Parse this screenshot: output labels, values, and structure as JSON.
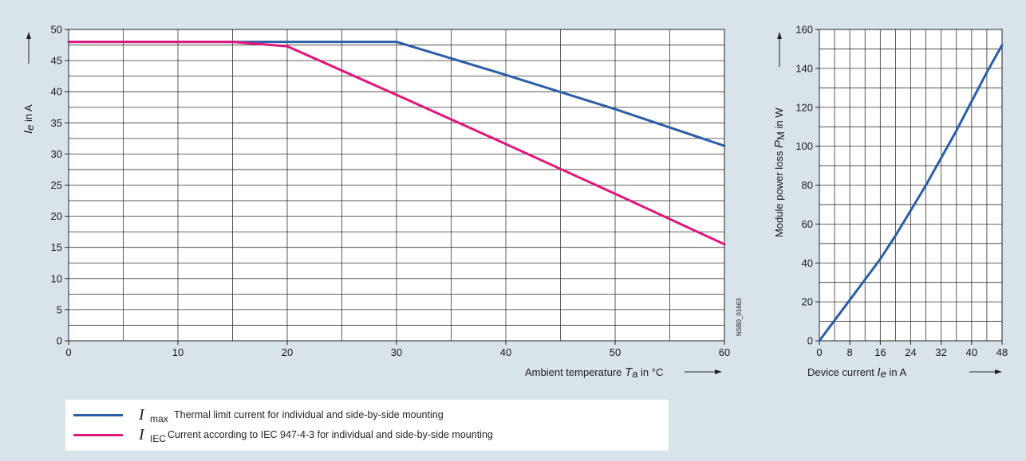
{
  "chart_data": [
    {
      "type": "line",
      "xlabel_prefix": "Ambient temperature",
      "xlabel_symbol": "T",
      "xlabel_subscript": "a",
      "xlabel_suffix": "in °C",
      "ylabel_symbol": "I",
      "ylabel_subscript": "e",
      "ylabel_suffix": "in A",
      "xlim": [
        0,
        60
      ],
      "ylim": [
        0,
        50
      ],
      "x_ticks": [
        "0",
        "10",
        "20",
        "30",
        "40",
        "50",
        "60"
      ],
      "y_ticks": [
        "0",
        "5",
        "10",
        "15",
        "20",
        "25",
        "30",
        "35",
        "40",
        "45",
        "50"
      ],
      "grid": true,
      "code_label": "NSB0_01663",
      "series": [
        {
          "name": "Imax",
          "color": "#2b5ea6",
          "points": [
            [
              0,
              48
            ],
            [
              15,
              48
            ],
            [
              30,
              48
            ],
            [
              40,
              42.7
            ],
            [
              50,
              37.2
            ],
            [
              60,
              31.3
            ]
          ]
        },
        {
          "name": "IIEC",
          "color": "#e0177a",
          "points": [
            [
              0,
              48
            ],
            [
              15,
              48
            ],
            [
              20,
              47.3
            ],
            [
              30,
              39.5
            ],
            [
              40,
              31.6
            ],
            [
              50,
              23.6
            ],
            [
              60,
              15.5
            ]
          ]
        }
      ]
    },
    {
      "type": "line",
      "xlabel_prefix": "Device current",
      "xlabel_symbol": "I",
      "xlabel_subscript": "e",
      "xlabel_suffix": "in A",
      "ylabel_prefix": "Module power loss",
      "ylabel_symbol": "P",
      "ylabel_subscript": "M",
      "ylabel_suffix": "in W",
      "xlim": [
        0,
        48
      ],
      "ylim": [
        0,
        160
      ],
      "x_ticks": [
        "0",
        "8",
        "16",
        "24",
        "32",
        "40",
        "48"
      ],
      "y_ticks": [
        "0",
        "20",
        "40",
        "60",
        "80",
        "100",
        "120",
        "140",
        "160"
      ],
      "grid": true,
      "series": [
        {
          "name": "",
          "color": "#2b5ea6",
          "points": [
            [
              0,
              0
            ],
            [
              4,
              10.5
            ],
            [
              8,
              21
            ],
            [
              12,
              31.5
            ],
            [
              16,
              42
            ],
            [
              20,
              54
            ],
            [
              24,
              67
            ],
            [
              28,
              80
            ],
            [
              32,
              94
            ],
            [
              36,
              108
            ],
            [
              40,
              123
            ],
            [
              44,
              138
            ],
            [
              48,
              152
            ]
          ]
        }
      ]
    }
  ],
  "legend": [
    {
      "symbol": "I",
      "subscript": "max",
      "text": "Thermal limit current for individual and side-by-side mounting",
      "color": "#2b5ea6"
    },
    {
      "symbol": "I",
      "subscript": "IEC",
      "text": "Current according to IEC 947-4-3 for individual and side-by-side mounting",
      "color": "#e0177a"
    }
  ]
}
